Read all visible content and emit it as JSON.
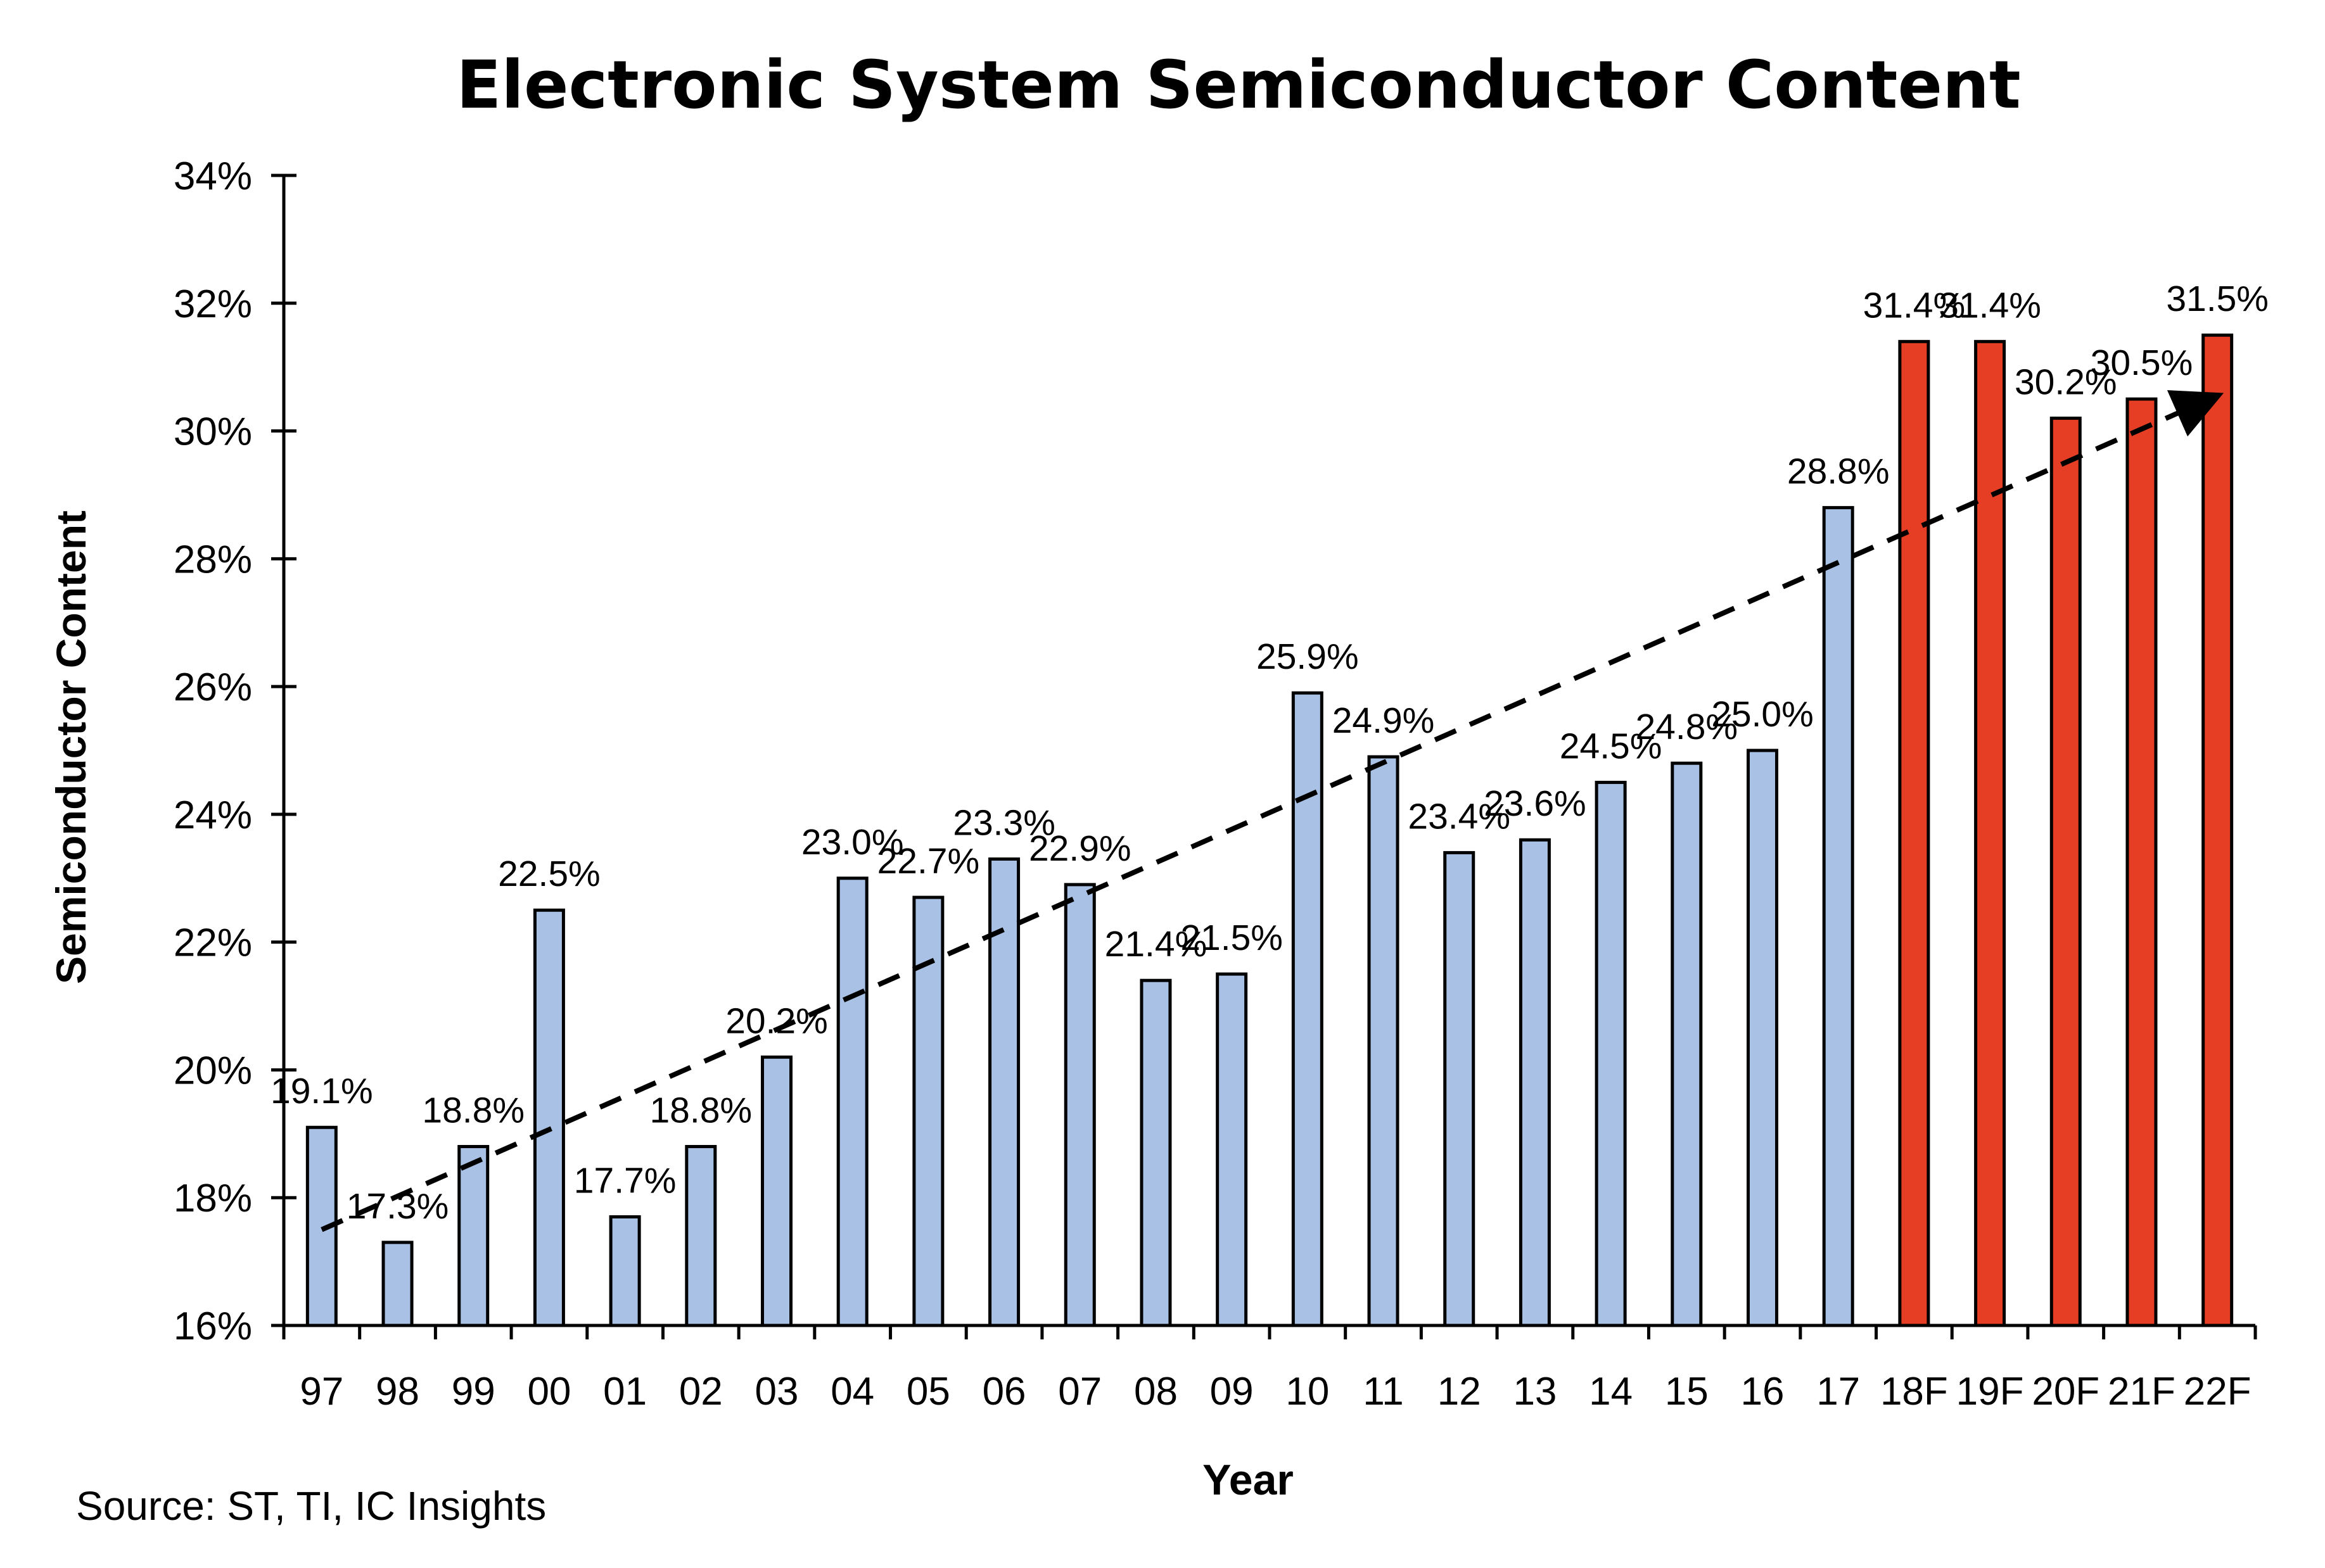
{
  "chart_data": {
    "type": "bar",
    "title": "Electronic System Semiconductor Content",
    "xlabel": "Year",
    "ylabel": "Semiconductor Content",
    "source": "Source: ST, TI, IC Insights",
    "ylim": [
      16,
      34
    ],
    "yticks": [
      16,
      18,
      20,
      22,
      24,
      26,
      28,
      30,
      32,
      34
    ],
    "ytick_labels": [
      "16%",
      "18%",
      "20%",
      "22%",
      "24%",
      "26%",
      "28%",
      "30%",
      "32%",
      "34%"
    ],
    "categories": [
      "97",
      "98",
      "99",
      "00",
      "01",
      "02",
      "03",
      "04",
      "05",
      "06",
      "07",
      "08",
      "09",
      "10",
      "11",
      "12",
      "13",
      "14",
      "15",
      "16",
      "17",
      "18F",
      "19F",
      "20F",
      "21F",
      "22F"
    ],
    "values": [
      19.1,
      17.3,
      18.8,
      22.5,
      17.7,
      18.8,
      20.2,
      23.0,
      22.7,
      23.3,
      22.9,
      21.4,
      21.5,
      25.9,
      24.9,
      23.4,
      23.6,
      24.5,
      24.8,
      25.0,
      28.8,
      31.4,
      31.4,
      30.2,
      30.5,
      31.5
    ],
    "value_labels": [
      "19.1%",
      "17.3%",
      "18.8%",
      "22.5%",
      "17.7%",
      "18.8%",
      "20.2%",
      "23.0%",
      "22.7%",
      "23.3%",
      "22.9%",
      "21.4%",
      "21.5%",
      "25.9%",
      "24.9%",
      "23.4%",
      "23.6%",
      "24.5%",
      "24.8%",
      "25.0%",
      "28.8%",
      "31.4%",
      "31.4%",
      "30.2%",
      "30.5%",
      "31.5%"
    ],
    "forecast": [
      false,
      false,
      false,
      false,
      false,
      false,
      false,
      false,
      false,
      false,
      false,
      false,
      false,
      false,
      false,
      false,
      false,
      false,
      false,
      false,
      false,
      true,
      true,
      true,
      true,
      true
    ],
    "colors": {
      "actual": "#a8c1e4",
      "forecast": "#e63e24",
      "outline": "#000000",
      "trend": "#000000"
    },
    "trend": {
      "style": "dashed",
      "start": {
        "category": "97",
        "value": 17.5
      },
      "end": {
        "category": "22F",
        "value": 30.5
      }
    }
  }
}
